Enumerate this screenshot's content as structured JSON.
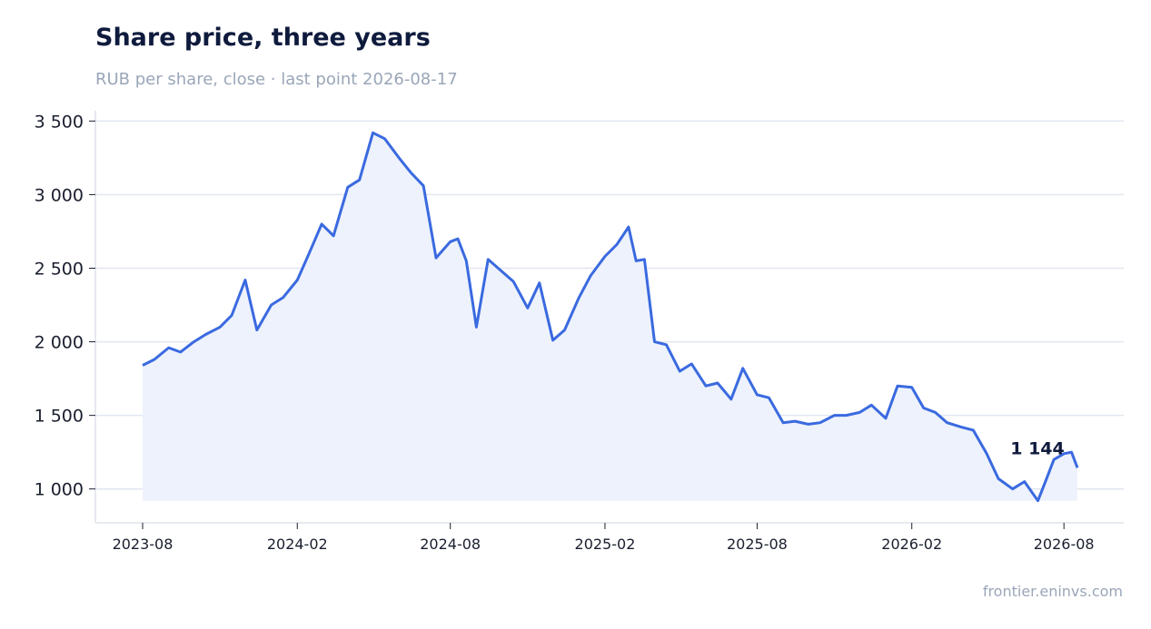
{
  "header": {
    "title": "Share price, three years",
    "subtitle": "RUB per share, close · last point 2026-08-17"
  },
  "footer": {
    "source": "frontier.eninvs.com"
  },
  "colors": {
    "line": "#3a6ae0",
    "area": "#edf2fc",
    "grid": "#e2e6f0",
    "axis": "#dde2ea"
  },
  "chart_data": {
    "type": "area",
    "title": "Share price, three years",
    "subtitle": "RUB per share, close · last point 2026-08-17",
    "xlabel": "",
    "ylabel": "",
    "ylim": [
      770,
      3570
    ],
    "y_ticks": [
      1000,
      1500,
      2000,
      2500,
      3000,
      3500
    ],
    "y_tick_labels": [
      "1 000",
      "1 500",
      "2 000",
      "2 500",
      "3 000",
      "3 500"
    ],
    "x_ticks": [
      "2023-08",
      "2024-02",
      "2024-08",
      "2025-02",
      "2025-08",
      "2026-02",
      "2026-08"
    ],
    "grid": true,
    "end_label": "1 144",
    "series": [
      {
        "x": [
          "2023-08-01",
          "2023-08-15",
          "2023-09-01",
          "2023-09-15",
          "2023-10-01",
          "2023-10-15",
          "2023-11-01",
          "2023-11-15",
          "2023-12-01",
          "2023-12-15",
          "2024-01-01",
          "2024-01-15",
          "2024-02-01",
          "2024-02-15",
          "2024-03-01",
          "2024-03-15",
          "2024-04-01",
          "2024-04-15",
          "2024-05-01",
          "2024-05-15",
          "2024-06-01",
          "2024-06-15",
          "2024-06-30",
          "2024-07-15",
          "2024-08-01",
          "2024-08-10",
          "2024-08-20",
          "2024-09-01",
          "2024-09-15",
          "2024-10-01",
          "2024-10-15",
          "2024-11-01",
          "2024-11-15",
          "2024-12-01",
          "2024-12-15",
          "2025-01-01",
          "2025-01-15",
          "2025-02-01",
          "2025-02-15",
          "2025-03-01",
          "2025-03-10",
          "2025-03-20",
          "2025-04-01",
          "2025-04-15",
          "2025-05-01",
          "2025-05-15",
          "2025-06-01",
          "2025-06-15",
          "2025-07-01",
          "2025-07-15",
          "2025-08-01",
          "2025-08-15",
          "2025-09-01",
          "2025-09-15",
          "2025-10-01",
          "2025-10-15",
          "2025-11-01",
          "2025-11-15",
          "2025-12-01",
          "2025-12-15",
          "2026-01-01",
          "2026-01-15",
          "2026-02-01",
          "2026-02-15",
          "2026-03-01",
          "2026-03-15",
          "2026-04-01",
          "2026-04-15",
          "2026-05-01",
          "2026-05-15",
          "2026-06-01",
          "2026-06-15",
          "2026-07-01",
          "2026-07-10",
          "2026-07-20",
          "2026-08-01",
          "2026-08-10",
          "2026-08-17"
        ],
        "values": [
          1840,
          1880,
          1960,
          1930,
          2000,
          2050,
          2100,
          2180,
          2420,
          2080,
          2250,
          2300,
          2420,
          2600,
          2800,
          2720,
          3050,
          3100,
          3420,
          3380,
          3250,
          3150,
          3060,
          2570,
          2680,
          2700,
          2550,
          2100,
          2560,
          2480,
          2410,
          2230,
          2400,
          2010,
          2080,
          2300,
          2450,
          2580,
          2660,
          2780,
          2550,
          2560,
          2000,
          1980,
          1800,
          1850,
          1700,
          1720,
          1610,
          1820,
          1640,
          1620,
          1450,
          1460,
          1440,
          1450,
          1500,
          1500,
          1520,
          1570,
          1480,
          1700,
          1690,
          1550,
          1520,
          1450,
          1420,
          1400,
          1240,
          1070,
          1000,
          1050,
          920,
          1050,
          1200,
          1240,
          1250,
          1144
        ]
      }
    ]
  }
}
